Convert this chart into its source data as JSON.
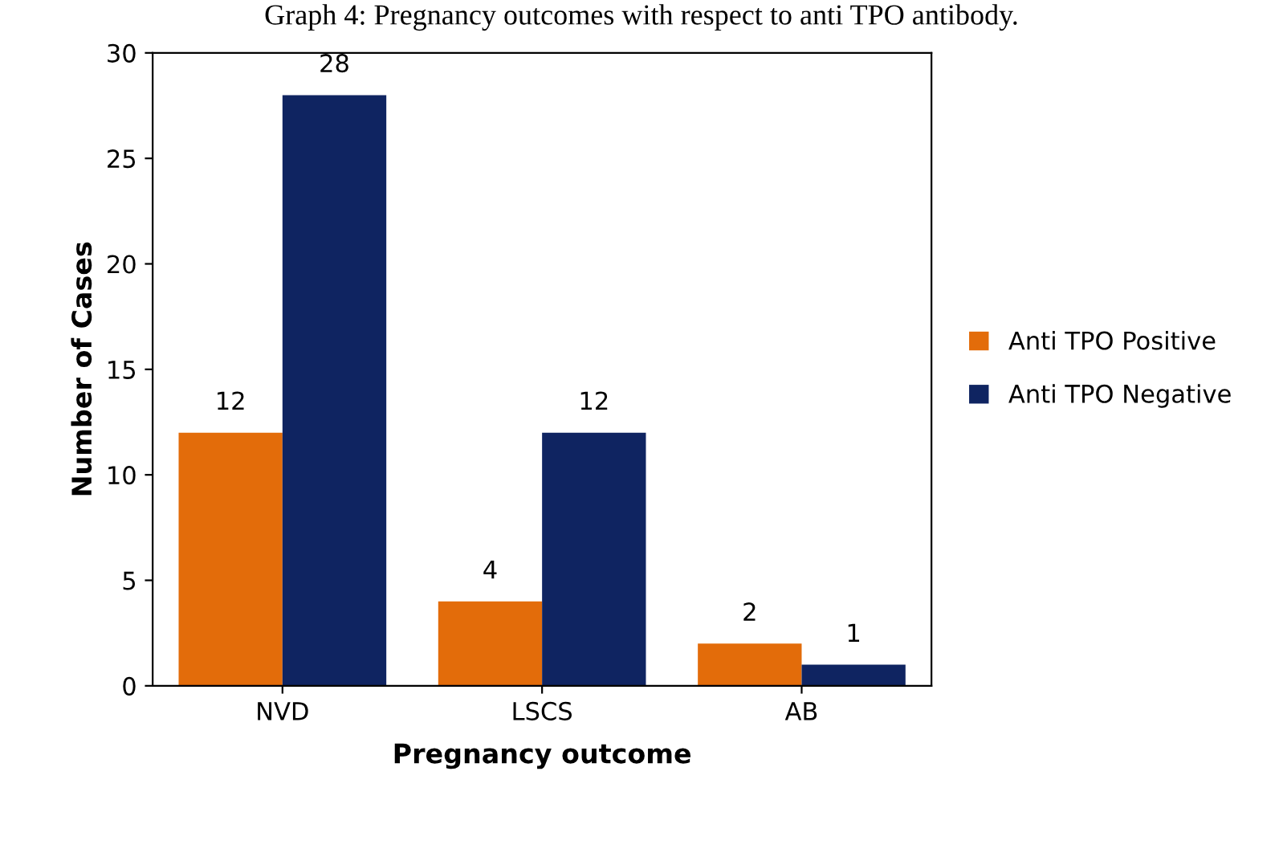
{
  "chart_data": {
    "type": "bar",
    "title": "Graph 4: Pregnancy outcomes with respect to anti TPO antibody.",
    "xlabel": "Pregnancy outcome",
    "ylabel": "Number of Cases",
    "categories": [
      "NVD",
      "LSCS",
      "AB"
    ],
    "series": [
      {
        "name": "Anti TPO Positive",
        "color": "#e36c0a",
        "values": [
          12,
          4,
          2
        ]
      },
      {
        "name": "Anti TPO Negative",
        "color": "#0f2461",
        "values": [
          28,
          12,
          1
        ]
      }
    ],
    "ylim": [
      0,
      30
    ],
    "yticks": [
      0,
      5,
      10,
      15,
      20,
      25,
      30
    ],
    "grid": false,
    "legend": "right",
    "data_labels": true
  }
}
